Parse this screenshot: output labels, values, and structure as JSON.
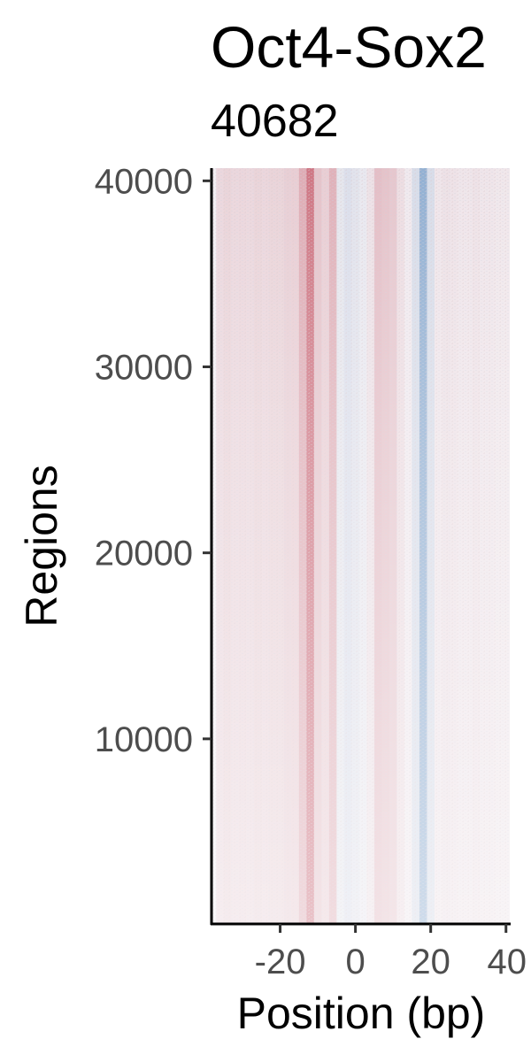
{
  "chart_data": {
    "type": "heatmap",
    "title": "Oct4-Sox2",
    "subtitle": "40682",
    "xlabel": "Position (bp)",
    "ylabel": "Regions",
    "xlim": [
      -38,
      41
    ],
    "ylim": [
      1,
      40682
    ],
    "xticks": [
      -20,
      0,
      20,
      40
    ],
    "yticks": [
      10000,
      20000,
      30000,
      40000
    ],
    "n_regions": 40682,
    "colors": {
      "positive": "#b2182b",
      "negative": "#2166ac",
      "neutral": "#f2eef2",
      "axis": "#000000"
    },
    "column_signal": [
      {
        "x": -36,
        "value": 0.1
      },
      {
        "x": -34,
        "value": 0.12
      },
      {
        "x": -32,
        "value": 0.1
      },
      {
        "x": -30,
        "value": 0.11
      },
      {
        "x": -28,
        "value": 0.1
      },
      {
        "x": -26,
        "value": 0.12
      },
      {
        "x": -24,
        "value": 0.11
      },
      {
        "x": -22,
        "value": 0.12
      },
      {
        "x": -20,
        "value": 0.12
      },
      {
        "x": -18,
        "value": 0.14
      },
      {
        "x": -16,
        "value": 0.15
      },
      {
        "x": -14,
        "value": 0.3
      },
      {
        "x": -12,
        "value": 0.55
      },
      {
        "x": -10,
        "value": 0.2
      },
      {
        "x": -8,
        "value": 0.15
      },
      {
        "x": -6,
        "value": 0.28
      },
      {
        "x": -4,
        "value": -0.06
      },
      {
        "x": -2,
        "value": -0.1
      },
      {
        "x": 0,
        "value": -0.08
      },
      {
        "x": 2,
        "value": -0.04
      },
      {
        "x": 4,
        "value": 0.06
      },
      {
        "x": 6,
        "value": 0.22
      },
      {
        "x": 8,
        "value": 0.2
      },
      {
        "x": 10,
        "value": 0.18
      },
      {
        "x": 12,
        "value": 0.08
      },
      {
        "x": 14,
        "value": 0.02
      },
      {
        "x": 16,
        "value": -0.12
      },
      {
        "x": 18,
        "value": -0.45
      },
      {
        "x": 20,
        "value": -0.12
      },
      {
        "x": 22,
        "value": 0.04
      },
      {
        "x": 24,
        "value": 0.06
      },
      {
        "x": 26,
        "value": 0.05
      },
      {
        "x": 28,
        "value": 0.04
      },
      {
        "x": 30,
        "value": 0.04
      },
      {
        "x": 32,
        "value": 0.05
      },
      {
        "x": 34,
        "value": 0.04
      },
      {
        "x": 36,
        "value": 0.04
      },
      {
        "x": 38,
        "value": 0.03
      },
      {
        "x": 40,
        "value": 0.03
      }
    ]
  }
}
